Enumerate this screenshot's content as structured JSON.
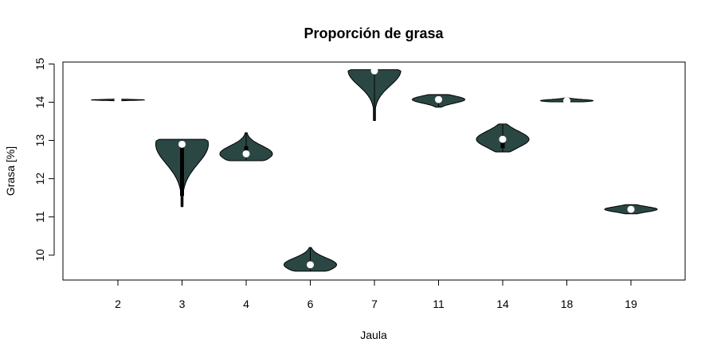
{
  "chart_data": {
    "type": "violin",
    "title": "Proporción de grasa",
    "xlabel": "Jaula",
    "ylabel": "Grasa [%]",
    "ylim": [
      9.35,
      15.05
    ],
    "yticks": [
      "10",
      "11",
      "12",
      "13",
      "14",
      "15"
    ],
    "categories": [
      "2",
      "3",
      "4",
      "6",
      "7",
      "11",
      "14",
      "18",
      "19"
    ],
    "series": [
      {
        "values": [
          {
            "min": 14.04,
            "max": 14.08,
            "q1": 14.05,
            "median": 14.06,
            "q3": 14.07
          },
          {
            "min": 11.27,
            "max": 13.03,
            "q1": 11.55,
            "median": 12.9,
            "q3": 12.9
          },
          {
            "min": 12.47,
            "max": 13.2,
            "q1": 12.65,
            "median": 12.65,
            "q3": 12.85
          },
          {
            "min": 9.58,
            "max": 10.2,
            "q1": 9.7,
            "median": 9.75,
            "q3": 9.85
          },
          {
            "min": 13.52,
            "max": 14.85,
            "q1": 14.8,
            "median": 14.82,
            "q3": 14.84
          },
          {
            "min": 13.87,
            "max": 14.2,
            "q1": 14.0,
            "median": 14.07,
            "q3": 14.12
          },
          {
            "min": 12.7,
            "max": 13.43,
            "q1": 12.8,
            "median": 13.03,
            "q3": 13.1
          },
          {
            "min": 14.01,
            "max": 14.12,
            "q1": 14.03,
            "median": 14.04,
            "q3": 14.06
          },
          {
            "min": 11.08,
            "max": 11.32,
            "q1": 11.15,
            "median": 11.2,
            "q3": 11.25
          }
        ]
      }
    ],
    "grid": false,
    "colors": {
      "violin_fill": "#2b4744",
      "outline": "#000000",
      "median_point": "#ffffff"
    }
  }
}
